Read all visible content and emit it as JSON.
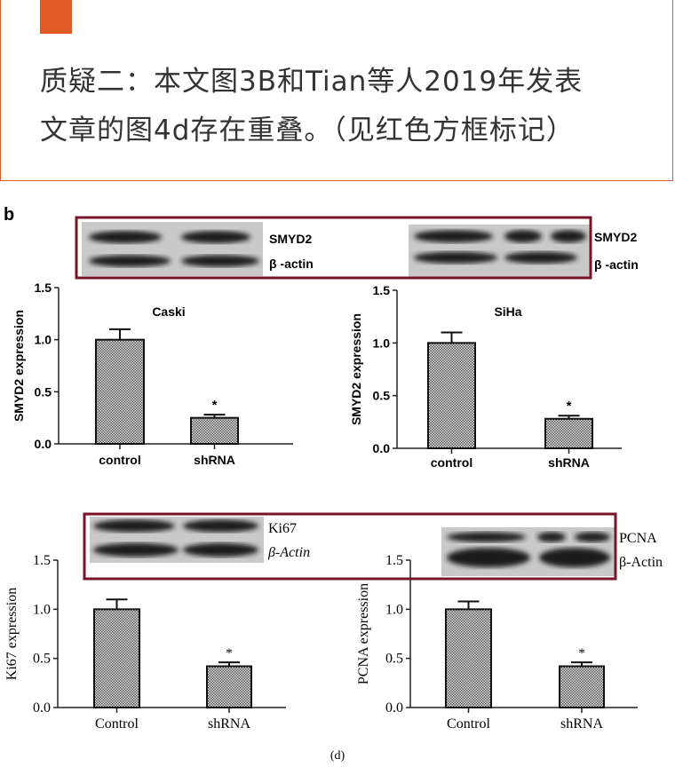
{
  "header": {
    "accent_color": "#e05a26",
    "line1": "质疑二：本文图3B和Tian等人2019年发表",
    "line2": "文章的图4d存在重叠。（见红色方框标记）"
  },
  "figure_b": {
    "panel_label": "b",
    "blot_left_labels": [
      "SMYD2",
      "β -actin"
    ],
    "blot_right_labels": [
      "SMYD2",
      "β -actin"
    ]
  },
  "figure_d": {
    "blot_left_labels": [
      "Ki67",
      "β-Actin"
    ],
    "blot_right_labels": [
      "PCNA",
      "β-Actin"
    ],
    "caption": "(d)"
  },
  "highlight_box_color": "#7a1428",
  "chart_data": [
    {
      "type": "bar",
      "title": "Caski",
      "ylabel": "SMYD2 expression",
      "ylim": [
        0,
        1.5
      ],
      "yticks": [
        "0.0",
        "0.5",
        "1.0",
        "1.5"
      ],
      "categories": [
        "control",
        "shRNA"
      ],
      "values": [
        1.0,
        0.25
      ],
      "error": [
        0.1,
        0.03
      ],
      "annotations": [
        "",
        "*"
      ]
    },
    {
      "type": "bar",
      "title": "SiHa",
      "ylabel": "SMYD2 expression",
      "ylim": [
        0,
        1.5
      ],
      "yticks": [
        "0.0",
        "0.5",
        "1.0",
        "1.5"
      ],
      "categories": [
        "control",
        "shRNA"
      ],
      "values": [
        1.0,
        0.28
      ],
      "error": [
        0.1,
        0.03
      ],
      "annotations": [
        "",
        "*"
      ]
    },
    {
      "type": "bar",
      "title": "",
      "ylabel": "Ki67 expression",
      "ylim": [
        0,
        1.5
      ],
      "yticks": [
        "0.0",
        "0.5",
        "1.0",
        "1.5"
      ],
      "categories": [
        "Control",
        "shRNA"
      ],
      "values": [
        1.0,
        0.42
      ],
      "error": [
        0.1,
        0.04
      ],
      "annotations": [
        "",
        "*"
      ]
    },
    {
      "type": "bar",
      "title": "",
      "ylabel": "PCNA expression",
      "ylim": [
        0,
        1.5
      ],
      "yticks": [
        "0.0",
        "0.5",
        "1.0",
        "1.5"
      ],
      "categories": [
        "Control",
        "shRNA"
      ],
      "values": [
        1.0,
        0.42
      ],
      "error": [
        0.08,
        0.04
      ],
      "annotations": [
        "",
        "*"
      ]
    }
  ]
}
